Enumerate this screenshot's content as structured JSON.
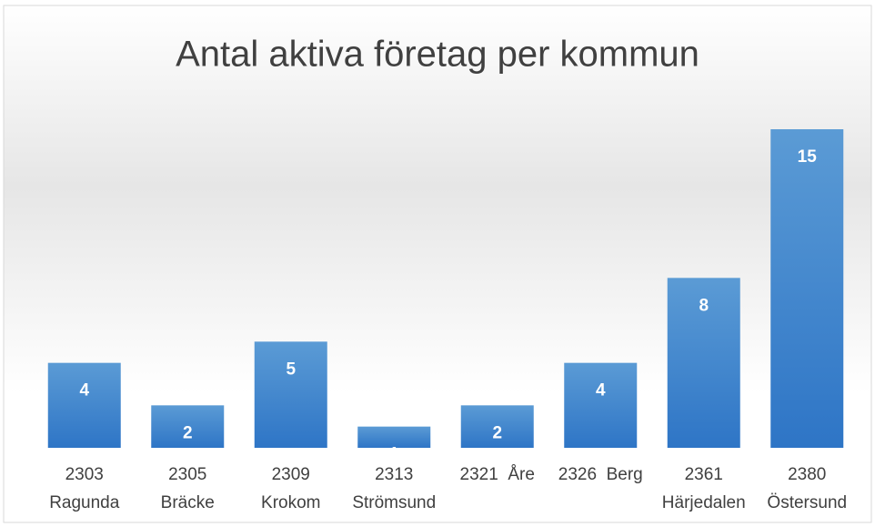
{
  "chart_data": {
    "type": "bar",
    "title": "Antal aktiva företag per kommun",
    "categories": [
      [
        "2303",
        "Ragunda"
      ],
      [
        "2305",
        "Bräcke"
      ],
      [
        "2309",
        "Krokom"
      ],
      [
        "2313",
        "Strömsund"
      ],
      [
        "2321  Åre"
      ],
      [
        "2326  Berg"
      ],
      [
        "2361",
        "Härjedalen"
      ],
      [
        "2380",
        "Östersund"
      ]
    ],
    "values": [
      4,
      2,
      5,
      1,
      2,
      4,
      8,
      15
    ],
    "color": "#4a8fd4"
  }
}
